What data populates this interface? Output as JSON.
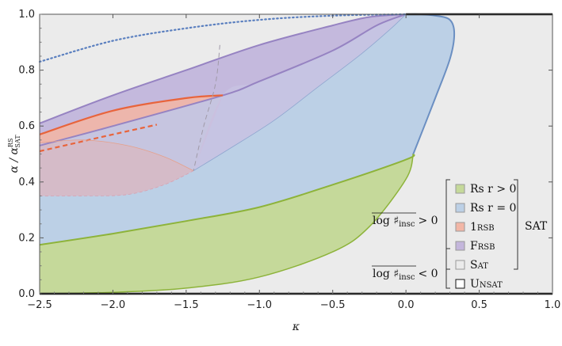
{
  "chart_data": {
    "type": "area",
    "title": "",
    "xlabel": "κ",
    "ylabel": "α / α",
    "ylabel_superscript": "RS",
    "ylabel_subscript": "SAT",
    "xlim": [
      -2.5,
      1.0
    ],
    "ylim": [
      0.0,
      1.0
    ],
    "x_ticks": [
      "−2.5",
      "−2.0",
      "−1.5",
      "−1.0",
      "−0.5",
      "0.0",
      "0.5",
      "1.0"
    ],
    "y_ticks": [
      "0.0",
      "0.2",
      "0.4",
      "0.6",
      "0.8",
      "1.0"
    ],
    "x_tick_values": [
      -2.5,
      -2.0,
      -1.5,
      -1.0,
      -0.5,
      0.0,
      0.5,
      1.0
    ],
    "y_tick_values": [
      0.0,
      0.2,
      0.4,
      0.6,
      0.8,
      1.0
    ],
    "colors": {
      "rs_pos": "#c5d99a",
      "rs_zero": "#bcd0e6",
      "one_rsb": "#f2b6a6",
      "frsb": "#c4b6dc",
      "sat": "#ebebeb",
      "unsat": "#ffffff",
      "rs_pos_line": "#8db33a",
      "rs_zero_line": "#6b8fc2",
      "one_rsb_line": "#e8643c",
      "frsb_line": "#9683c2",
      "boundary": "#000000"
    },
    "series": [
      {
        "key": "rs_pos_upper",
        "x": [
          -2.5,
          -2.0,
          -1.5,
          -1.0,
          -0.5,
          0.0,
          0.05
        ],
        "y": [
          0.175,
          0.215,
          0.26,
          0.31,
          0.39,
          0.48,
          0.5
        ]
      },
      {
        "key": "rs_pos_lower",
        "x": [
          -2.5,
          -2.0,
          -1.5,
          -1.0,
          -0.5,
          -0.25,
          0.0,
          0.05
        ],
        "y": [
          0.0,
          0.005,
          0.02,
          0.06,
          0.15,
          0.24,
          0.41,
          0.5
        ]
      },
      {
        "key": "rs_zero_upper",
        "x": [
          0.05,
          0.2,
          0.3,
          0.33,
          0.3,
          0.2,
          0.1,
          0.0
        ],
        "y": [
          0.5,
          0.7,
          0.84,
          0.93,
          0.98,
          0.995,
          1.0,
          1.0
        ]
      },
      {
        "key": "frsb_upper",
        "x": [
          -2.5,
          -2.0,
          -1.5,
          -1.0,
          -0.5,
          -0.25,
          0.0
        ],
        "y": [
          0.61,
          0.71,
          0.8,
          0.89,
          0.96,
          0.99,
          1.0
        ]
      },
      {
        "key": "frsb_lower",
        "x": [
          -2.5,
          -2.0,
          -1.25,
          -1.0,
          -0.5,
          -0.2,
          0.0
        ],
        "y": [
          0.53,
          0.6,
          0.71,
          0.76,
          0.87,
          0.96,
          1.0
        ]
      },
      {
        "key": "one_rsb_upper",
        "x": [
          -2.5,
          -2.0,
          -1.5,
          -1.25
        ],
        "y": [
          0.57,
          0.655,
          0.7,
          0.71
        ]
      },
      {
        "key": "one_rsb_dashed",
        "x": [
          -2.5,
          -2.25,
          -2.0,
          -1.7
        ],
        "y": [
          0.51,
          0.54,
          0.57,
          0.605
        ]
      },
      {
        "key": "frsb_inner_lower",
        "x": [
          -1.45,
          -1.2,
          -0.9,
          -0.6,
          -0.3,
          -0.1,
          0.0
        ],
        "y": [
          0.44,
          0.52,
          0.62,
          0.74,
          0.86,
          0.95,
          1.0
        ]
      },
      {
        "key": "one_rsb_lower_region",
        "x": [
          -2.5,
          -2.2,
          -1.9,
          -1.65,
          -1.45
        ],
        "y": [
          0.35,
          0.35,
          0.355,
          0.39,
          0.44
        ]
      },
      {
        "key": "one_rsb_upper_arc",
        "x": [
          -2.5,
          -2.2,
          -1.9,
          -1.65,
          -1.45
        ],
        "y": [
          0.54,
          0.55,
          0.53,
          0.49,
          0.44
        ]
      },
      {
        "key": "gray_dashed_vertical",
        "x": [
          -1.27,
          -1.3,
          -1.38,
          -1.45
        ],
        "y": [
          0.89,
          0.75,
          0.6,
          0.44
        ]
      },
      {
        "key": "blue_dotted",
        "x": [
          -2.5,
          -2.0,
          -1.5,
          -1.0,
          -0.5,
          0.0
        ],
        "y": [
          0.83,
          0.905,
          0.95,
          0.98,
          0.995,
          1.0
        ]
      },
      {
        "key": "gray_dotted_top",
        "x": [
          -2.5,
          -1.0,
          0.0
        ],
        "y": [
          1.0,
          1.0,
          1.0
        ]
      }
    ],
    "legend": {
      "placement": "bottom-right",
      "items": [
        {
          "key": "rs_pos",
          "label_main": "Rs",
          "label_rest": " r > 0"
        },
        {
          "key": "rs_zero",
          "label_main": "Rs",
          "label_rest": " r = 0"
        },
        {
          "key": "one_rsb",
          "label_main": "1",
          "label_rest": "RSB"
        },
        {
          "key": "frsb",
          "label_main": "F",
          "label_rest": "RSB"
        },
        {
          "key": "sat",
          "label_main": "S",
          "label_rest": "AT"
        },
        {
          "key": "unsat",
          "label_main": "U",
          "label_rest": "NSAT"
        }
      ],
      "group_label": "SAT",
      "condition_pos": "> 0",
      "condition_neg": "< 0",
      "condition_expr_main": "log ♯",
      "condition_expr_sub": "insc"
    }
  }
}
